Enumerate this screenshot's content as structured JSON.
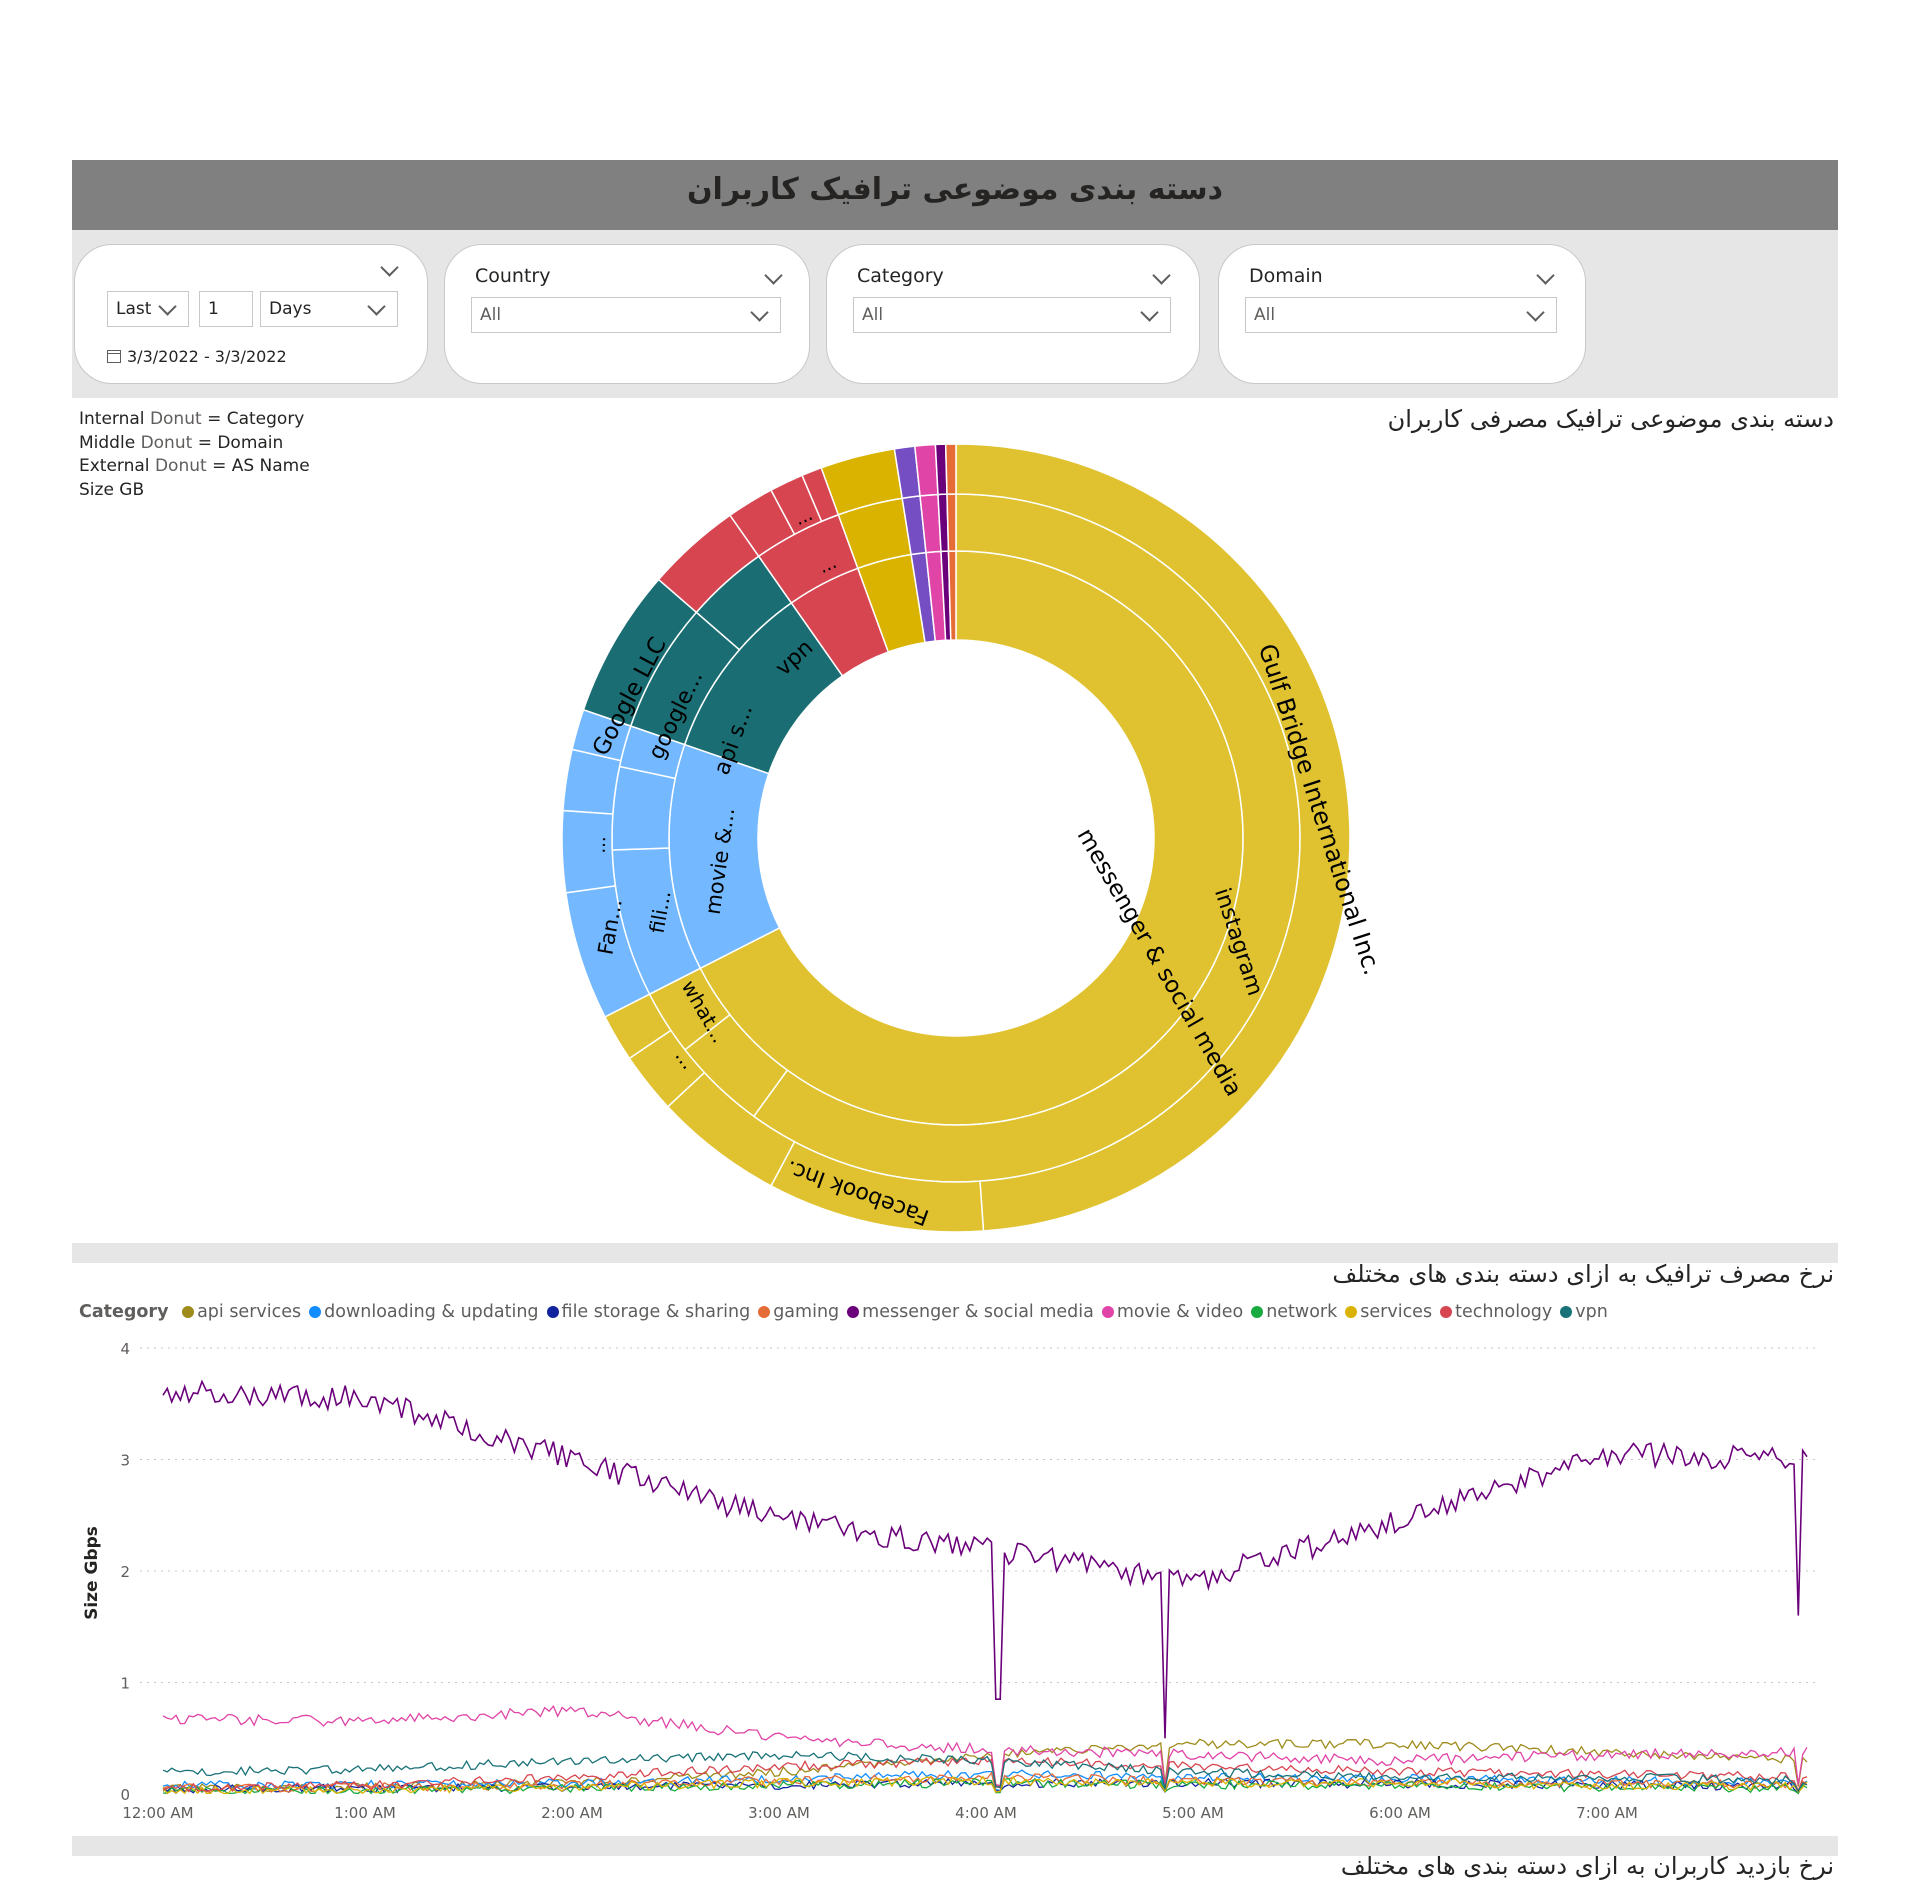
{
  "header": {
    "title": "دسته بندی موضوعی ترافیک کاربران"
  },
  "filters": {
    "date": {
      "mode": "Last",
      "count": "1",
      "unit": "Days",
      "range": "3/3/2022 - 3/3/2022"
    },
    "country": {
      "label": "Country",
      "value": "All"
    },
    "category": {
      "label": "Category",
      "value": "All"
    },
    "domain": {
      "label": "Domain",
      "value": "All"
    }
  },
  "sunburst": {
    "title": "دسته بندی موضوعی ترافیک مصرفی کاربران",
    "notes": [
      {
        "key": "Internal",
        "muted": "Donut",
        "rest": "= Category"
      },
      {
        "key": "Middle",
        "muted": "Donut",
        "rest": "= Domain"
      },
      {
        "key": "External",
        "muted": "Donut",
        "rest": "= AS Name"
      },
      {
        "key": "Size GB",
        "muted": "",
        "rest": ""
      }
    ],
    "labels": {
      "gulf": "Gulf Bridge International Inc.",
      "instagram": "instagram",
      "messenger": "messenger & social media",
      "facebook": "Facebook Inc.",
      "whatsapp": "what...",
      "ell1": "...",
      "fan": "Fan...",
      "fili": "fili...",
      "movie": "movie &...",
      "ell2": "...",
      "google_llc": "Google LLC",
      "google_dom": "google...",
      "api": "api s...",
      "vpn": "vpn",
      "ell3": "...",
      "ell4": "..."
    }
  },
  "line_chart": {
    "title": "نرخ مصرف ترافیک به ازای دسته بندی های مختلف",
    "legend_title": "Category",
    "ylabel": "Size Gbps",
    "x_ticks": [
      "12:00 AM",
      "1:00 AM",
      "2:00 AM",
      "3:00 AM",
      "4:00 AM",
      "5:00 AM",
      "6:00 AM",
      "7:00 AM"
    ],
    "y_ticks": [
      "0",
      "1",
      "2",
      "3",
      "4"
    ]
  },
  "bottom_title": "نرخ بازدید کاربران به ازای دسته بندی های مختلف",
  "chart_data": {
    "type": "line",
    "xlabel": "",
    "ylabel": "Size Gbps",
    "ylim": [
      0,
      4
    ],
    "x_range": [
      "12:00 AM",
      "7:55 AM"
    ],
    "legend_title": "Category",
    "legend_position": "top-left",
    "grid": true,
    "x": [
      "12:00 AM",
      "1:00 AM",
      "2:00 AM",
      "3:00 AM",
      "4:00 AM",
      "5:00 AM",
      "6:00 AM",
      "7:00 AM",
      "7:55 AM"
    ],
    "series": [
      {
        "name": "api services",
        "color": "#9E8B19",
        "values": [
          0.05,
          0.06,
          0.1,
          0.2,
          0.35,
          0.45,
          0.45,
          0.38,
          0.3
        ]
      },
      {
        "name": "downloading & updating",
        "color": "#118DFF",
        "values": [
          0.08,
          0.08,
          0.1,
          0.14,
          0.18,
          0.15,
          0.14,
          0.12,
          0.1
        ]
      },
      {
        "name": "file storage & sharing",
        "color": "#12239E",
        "values": [
          0.04,
          0.05,
          0.06,
          0.08,
          0.1,
          0.1,
          0.09,
          0.08,
          0.07
        ]
      },
      {
        "name": "gaming",
        "color": "#E66C37",
        "values": [
          0.05,
          0.06,
          0.08,
          0.12,
          0.15,
          0.12,
          0.1,
          0.1,
          0.08
        ]
      },
      {
        "name": "messenger & social media",
        "color": "#6B007B",
        "values": [
          3.6,
          3.55,
          3.0,
          2.45,
          2.2,
          1.9,
          2.45,
          3.05,
          3.0
        ]
      },
      {
        "name": "movie & video",
        "color": "#E044A7",
        "values": [
          0.68,
          0.65,
          0.75,
          0.5,
          0.4,
          0.35,
          0.3,
          0.35,
          0.38
        ]
      },
      {
        "name": "network",
        "color": "#1AAB40",
        "values": [
          0.02,
          0.03,
          0.05,
          0.08,
          0.1,
          0.08,
          0.07,
          0.06,
          0.05
        ]
      },
      {
        "name": "services",
        "color": "#D9B300",
        "values": [
          0.03,
          0.04,
          0.06,
          0.1,
          0.12,
          0.1,
          0.1,
          0.08,
          0.07
        ]
      },
      {
        "name": "technology",
        "color": "#D64550",
        "values": [
          0.06,
          0.08,
          0.15,
          0.25,
          0.3,
          0.25,
          0.2,
          0.18,
          0.15
        ]
      },
      {
        "name": "vpn",
        "color": "#197278",
        "values": [
          0.2,
          0.22,
          0.3,
          0.35,
          0.3,
          0.2,
          0.15,
          0.15,
          0.12
        ]
      }
    ]
  },
  "colors": {
    "social": "#E0C231",
    "video": "#74B9FF",
    "google": "#1A6E73",
    "vpn": "#D64550",
    "tech": "#D9B300",
    "purple": "#744EC2",
    "pink": "#E044A7",
    "darkpurple": "#6B007B",
    "orange": "#E66C37"
  }
}
